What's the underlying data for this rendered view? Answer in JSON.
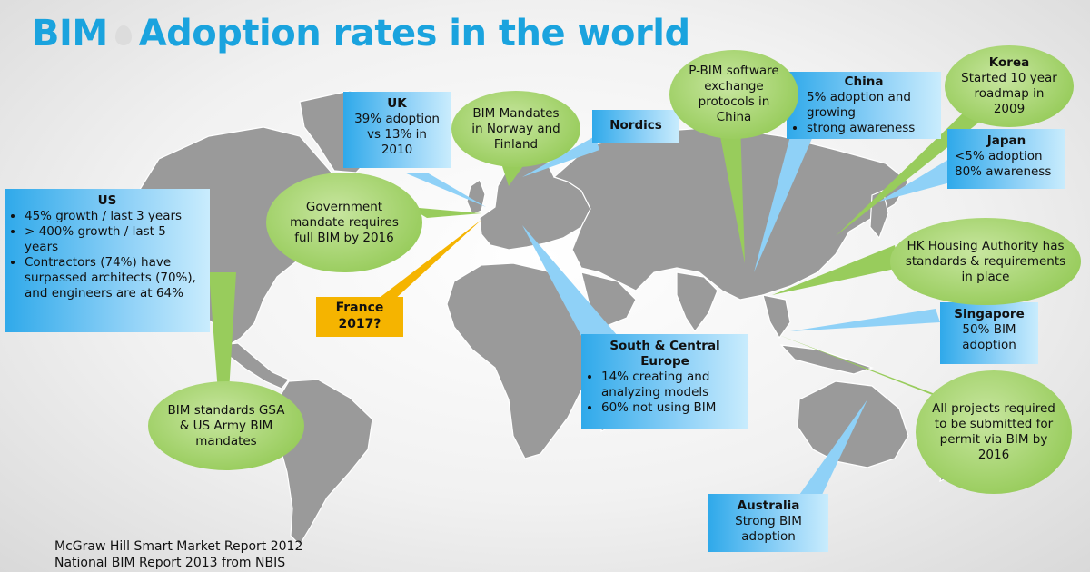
{
  "title": {
    "part1": "BIM",
    "part2": "Adoption rates in the world"
  },
  "colors": {
    "title": "#1aa3de",
    "box_blue": "#bfe6fb",
    "bubble_green": "#98cc5c",
    "france_orange": "#f5b400",
    "land": "#9a9a9a"
  },
  "regions": {
    "us": {
      "heading": "US",
      "bullets": [
        "45% growth / last 3 years",
        "> 400% growth / last 5 years",
        "Contractors (74%) have surpassed architects (70%), and engineers are at 64%"
      ]
    },
    "uk": {
      "heading": "UK",
      "text": "39% adoption vs 13% in 2010"
    },
    "nordics": {
      "heading": "Nordics"
    },
    "china": {
      "heading": "China",
      "bullets": [
        "5% adoption and growing",
        "strong awareness"
      ]
    },
    "korea": {
      "heading": "Korea",
      "text": "Started 10 year roadmap in 2009"
    },
    "japan": {
      "heading": "Japan",
      "line1": "<5% adoption",
      "line2": "80% awareness"
    },
    "singapore": {
      "heading": "Singapore",
      "text": "50% BIM adoption"
    },
    "south_central_europe": {
      "heading": "South & Central Europe",
      "bullets": [
        "14% creating and analyzing models",
        "60% not using BIM"
      ]
    },
    "australia": {
      "heading": "Australia",
      "text": "Strong BIM adoption"
    },
    "france": {
      "line1": "France",
      "line2": "2017?"
    }
  },
  "bubbles": {
    "norway_finland": "BIM Mandates in Norway and Finland",
    "government": "Government mandate requires full BIM by 2016",
    "pbim": "P-BIM software exchange protocols in China",
    "hk": "HK Housing Authority has standards & requirements in place",
    "us_standards": "BIM standards GSA & US Army BIM mandates",
    "singapore_permit": "All projects required to be submitted for permit via BIM by 2016"
  },
  "source": {
    "line1": "McGraw Hill Smart Market Report 2012",
    "line2": "National BIM Report 2013 from NBIS"
  }
}
